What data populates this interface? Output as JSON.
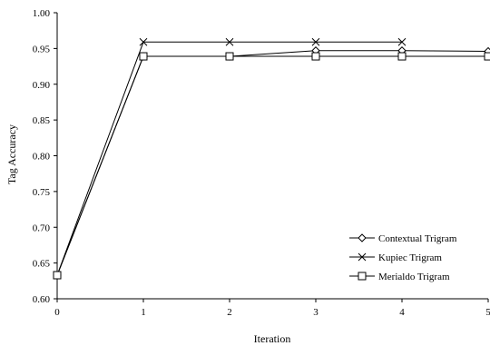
{
  "chart_data": {
    "type": "line",
    "title": "",
    "xlabel": "Iteration",
    "ylabel": "Tag Accuracy",
    "x": [
      0,
      1,
      2,
      3,
      4,
      5
    ],
    "xlim": [
      0,
      5
    ],
    "ylim": [
      0.6,
      1.0
    ],
    "x_ticks": [
      "0",
      "1",
      "2",
      "3",
      "4",
      "5"
    ],
    "y_ticks": [
      "0.60",
      "0.65",
      "0.70",
      "0.75",
      "0.80",
      "0.85",
      "0.90",
      "0.95",
      "1.00"
    ],
    "grid": false,
    "legend_position": "bottom-right",
    "series": [
      {
        "name": "Contextual Trigram",
        "marker": "diamond",
        "color": "#000000",
        "values": [
          0.633,
          0.939,
          0.939,
          0.947,
          0.947,
          0.946
        ]
      },
      {
        "name": "Kupiec Trigram",
        "marker": "x",
        "color": "#000000",
        "values": [
          0.633,
          0.959,
          0.959,
          0.959,
          0.959,
          null
        ]
      },
      {
        "name": "Merialdo Trigram",
        "marker": "square",
        "color": "#000000",
        "values": [
          0.633,
          0.939,
          0.939,
          0.939,
          0.939,
          0.939
        ]
      }
    ]
  }
}
